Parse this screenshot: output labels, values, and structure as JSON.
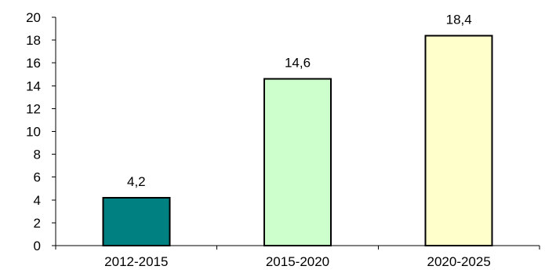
{
  "chart_data": {
    "type": "bar",
    "categories": [
      "2012-2015",
      "2015-2020",
      "2020-2025"
    ],
    "values": [
      4.2,
      14.6,
      18.4
    ],
    "value_labels": [
      "4,2",
      "14,6",
      "18,4"
    ],
    "bar_colors": [
      "#008080",
      "#ccffcc",
      "#ffffcc"
    ],
    "title": "",
    "xlabel": "",
    "ylabel": "",
    "ylim": [
      0,
      20
    ],
    "y_ticks": [
      0,
      2,
      4,
      6,
      8,
      10,
      12,
      14,
      16,
      18,
      20
    ],
    "grid": false,
    "legend": "none"
  }
}
